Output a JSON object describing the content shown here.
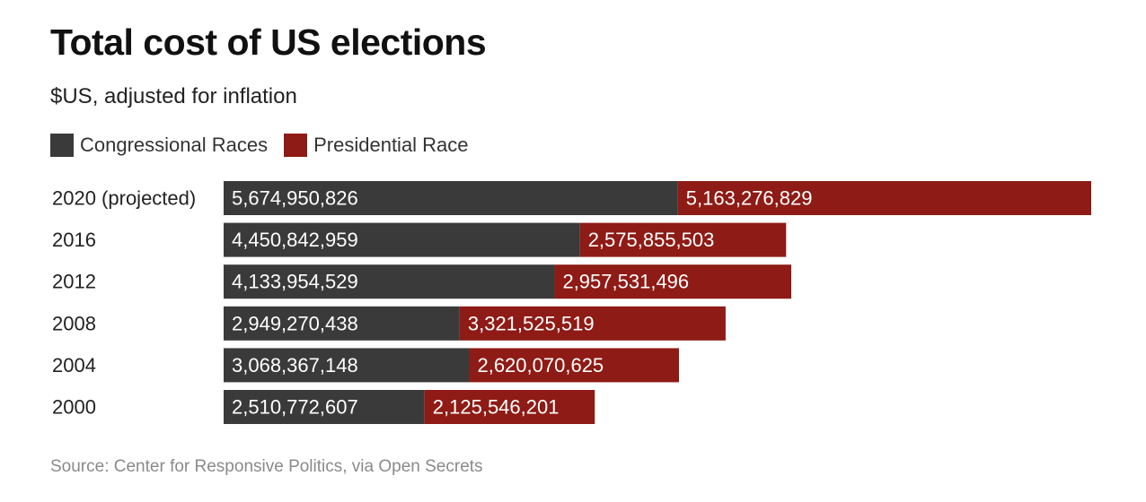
{
  "title": "Total cost of US elections",
  "subtitle": "$US, adjusted for inflation",
  "source": "Source: Center for Responsive Politics, via Open Secrets",
  "colors": {
    "congressional": "#3a3a3a",
    "presidential": "#8e1b15"
  },
  "chart_data": {
    "type": "bar",
    "orientation": "horizontal",
    "stacked": true,
    "title": "Total cost of US elections",
    "subtitle": "$US, adjusted for inflation",
    "categories": [
      "2020 (projected)",
      "2016",
      "2012",
      "2008",
      "2004",
      "2000"
    ],
    "series": [
      {
        "name": "Congressional Races",
        "values": [
          5674950826,
          4450842959,
          4133954529,
          2949270438,
          3068367148,
          2510772607
        ],
        "labels": [
          "5,674,950,826",
          "4,450,842,959",
          "4,133,954,529",
          "2,949,270,438",
          "3,068,367,148",
          "2,510,772,607"
        ]
      },
      {
        "name": "Presidential Race",
        "values": [
          5163276829,
          2575855503,
          2957531496,
          3321525519,
          2620070625,
          2125546201
        ],
        "labels": [
          "5,163,276,829",
          "2,575,855,503",
          "2,957,531,496",
          "3,321,525,519",
          "2,620,070,625",
          "2,125,546,201"
        ]
      }
    ],
    "legend_position": "top-left",
    "grid": false
  }
}
